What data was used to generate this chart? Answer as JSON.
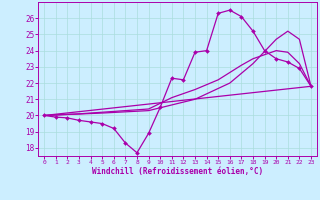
{
  "xlabel": "Windchill (Refroidissement éolien,°C)",
  "xlim": [
    -0.5,
    23.5
  ],
  "ylim": [
    17.5,
    27.0
  ],
  "xticks": [
    0,
    1,
    2,
    3,
    4,
    5,
    6,
    7,
    8,
    9,
    10,
    11,
    12,
    13,
    14,
    15,
    16,
    17,
    18,
    19,
    20,
    21,
    22,
    23
  ],
  "yticks": [
    18,
    19,
    20,
    21,
    22,
    23,
    24,
    25,
    26
  ],
  "background_color": "#cceeff",
  "grid_color": "#aadddd",
  "line_color": "#aa00aa",
  "curve_with_markers_x": [
    0,
    1,
    2,
    3,
    4,
    5,
    6,
    7,
    8,
    9,
    10,
    11,
    12,
    13,
    14,
    15,
    16,
    17,
    18,
    19,
    20,
    21,
    22,
    23
  ],
  "curve_with_markers_y": [
    20.0,
    19.9,
    19.85,
    19.7,
    19.6,
    19.5,
    19.2,
    18.3,
    17.7,
    18.9,
    20.5,
    22.3,
    22.2,
    23.9,
    24.0,
    26.3,
    26.5,
    26.1,
    25.2,
    24.0,
    23.5,
    23.3,
    22.9,
    21.8
  ],
  "line2_x": [
    0,
    3,
    5,
    9,
    11,
    13,
    15,
    17,
    18,
    20,
    21,
    22,
    23
  ],
  "line2_y": [
    20.0,
    20.1,
    20.2,
    20.4,
    21.1,
    21.6,
    22.2,
    23.1,
    23.5,
    24.0,
    23.9,
    23.2,
    21.8
  ],
  "line3_x": [
    0,
    5,
    9,
    13,
    16,
    18,
    20,
    21,
    22,
    23
  ],
  "line3_y": [
    20.0,
    20.15,
    20.3,
    21.0,
    22.0,
    23.2,
    24.7,
    25.2,
    24.7,
    21.8
  ],
  "line4_x": [
    0,
    23
  ],
  "line4_y": [
    20.0,
    21.8
  ]
}
